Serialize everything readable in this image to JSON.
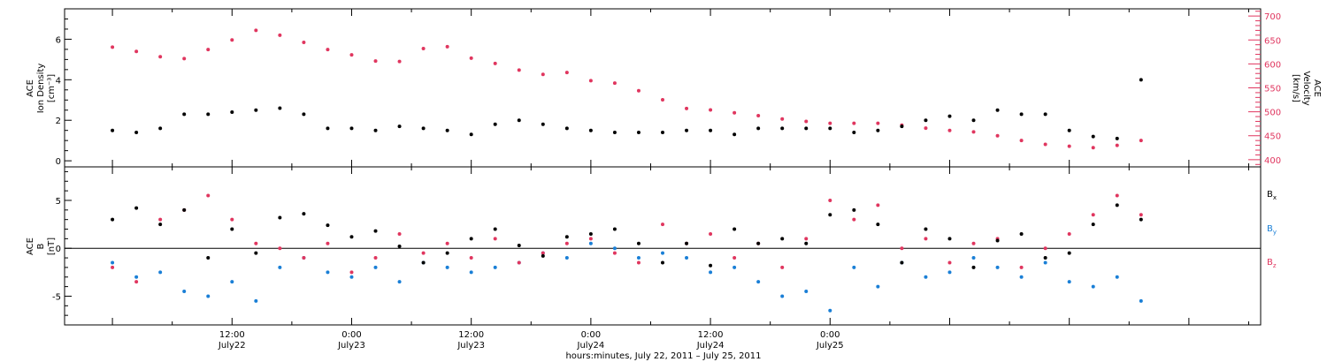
{
  "colors": {
    "density": "#000000",
    "velocity": "#e0365f",
    "bx": "#000000",
    "by": "#1a7fd6",
    "bz": "#e0365f",
    "axis": "#000000"
  },
  "chart_data": [
    {
      "type": "scatter",
      "panel": "plasma",
      "xlim": [
        -0.2,
        4.8
      ],
      "ylim_left": [
        -0.3,
        7.5
      ],
      "yticks_left": [
        0,
        2,
        4,
        6
      ],
      "ylim_right": [
        385,
        715
      ],
      "yticks_right": [
        400,
        450,
        500,
        550,
        600,
        650,
        700
      ],
      "ylabel_left": [
        "ACE",
        "Ion Density",
        "[cm⁻³]"
      ],
      "ylabel_right": [
        "ACE",
        "Velocity",
        "[km/s]"
      ],
      "series": [
        {
          "key": "density",
          "axis": "left",
          "x": [
            0.0,
            0.1,
            0.2,
            0.3,
            0.4,
            0.5,
            0.6,
            0.7,
            0.8,
            0.9,
            1.0,
            1.1,
            1.2,
            1.3,
            1.4,
            1.5,
            1.6,
            1.7,
            1.8,
            1.9,
            2.0,
            2.1,
            2.2,
            2.3,
            2.4,
            2.5,
            2.6,
            2.7,
            2.8,
            2.9,
            3.0,
            3.1,
            3.2,
            3.3,
            3.4,
            3.5,
            3.6,
            3.7,
            3.8,
            3.9,
            4.0,
            4.1,
            4.2,
            4.3
          ],
          "y": [
            1.5,
            1.4,
            1.6,
            2.3,
            2.3,
            2.4,
            2.5,
            2.6,
            2.3,
            1.6,
            1.6,
            1.5,
            1.7,
            1.6,
            1.5,
            1.3,
            1.8,
            2.0,
            1.8,
            1.6,
            1.5,
            1.4,
            1.4,
            1.4,
            1.5,
            1.5,
            1.3,
            1.6,
            1.6,
            1.6,
            1.6,
            1.4,
            1.5,
            1.7,
            2.0,
            2.2,
            2.0,
            2.5,
            2.3,
            2.3,
            1.5,
            1.2,
            1.1,
            4.0
          ]
        },
        {
          "key": "velocity",
          "axis": "right",
          "x": [
            0.0,
            0.1,
            0.2,
            0.3,
            0.4,
            0.5,
            0.6,
            0.7,
            0.8,
            0.9,
            1.0,
            1.1,
            1.2,
            1.3,
            1.4,
            1.5,
            1.6,
            1.7,
            1.8,
            1.9,
            2.0,
            2.1,
            2.2,
            2.3,
            2.4,
            2.5,
            2.6,
            2.7,
            2.8,
            2.9,
            3.0,
            3.1,
            3.2,
            3.3,
            3.4,
            3.5,
            3.6,
            3.7,
            3.8,
            3.9,
            4.0,
            4.1,
            4.2,
            4.3
          ],
          "y": [
            635,
            626,
            615,
            611,
            630,
            650,
            670,
            660,
            645,
            630,
            619,
            606,
            605,
            632,
            636,
            612,
            601,
            587,
            578,
            582,
            565,
            560,
            544,
            525,
            507,
            504,
            498,
            492,
            485,
            480,
            476,
            476,
            476,
            472,
            466,
            461,
            458,
            450,
            440,
            432,
            428,
            425,
            430,
            440
          ]
        }
      ]
    },
    {
      "type": "scatter",
      "panel": "magnetic-field",
      "xlim": [
        -0.2,
        4.8
      ],
      "ylim": [
        -8,
        8.5
      ],
      "yticks": [
        -5,
        0,
        5
      ],
      "ylabel": [
        "ACE",
        "B",
        "[nT]"
      ],
      "legend_placement": "right",
      "xtick_major": [
        {
          "x": 0.5,
          "time": "12:00",
          "date": "July22"
        },
        {
          "x": 1.0,
          "time": "0:00",
          "date": "July23"
        },
        {
          "x": 1.5,
          "time": "12:00",
          "date": "July23"
        },
        {
          "x": 2.0,
          "time": "0:00",
          "date": "July24"
        },
        {
          "x": 2.5,
          "time": "12:00",
          "date": "July24"
        },
        {
          "x": 3.0,
          "time": "0:00",
          "date": "July25"
        }
      ],
      "xlabel": "hours:minutes, July 22, 2011 – July 25, 2011",
      "series": [
        {
          "key": "bx",
          "label_main": "B",
          "label_sub": "x",
          "x": [
            0.0,
            0.1,
            0.2,
            0.3,
            0.4,
            0.5,
            0.6,
            0.7,
            0.8,
            0.9,
            1.0,
            1.1,
            1.2,
            1.3,
            1.4,
            1.5,
            1.6,
            1.7,
            1.8,
            1.9,
            2.0,
            2.1,
            2.2,
            2.3,
            2.4,
            2.5,
            2.6,
            2.7,
            2.8,
            2.9,
            3.0,
            3.1,
            3.2,
            3.3,
            3.4,
            3.5,
            3.6,
            3.7,
            3.8,
            3.9,
            4.0,
            4.1,
            4.2,
            4.3
          ],
          "y": [
            3.0,
            4.2,
            2.5,
            4.0,
            -1.0,
            2.0,
            -0.5,
            3.2,
            3.6,
            2.4,
            1.2,
            1.8,
            0.2,
            -1.5,
            -0.5,
            1.0,
            2.0,
            0.3,
            -0.8,
            1.2,
            1.5,
            2.0,
            0.5,
            -1.5,
            0.5,
            -1.8,
            2.0,
            0.5,
            1.0,
            0.5,
            3.5,
            4.0,
            2.5,
            -1.5,
            2.0,
            1.0,
            -2.0,
            0.8,
            1.5,
            -1.0,
            -0.5,
            2.5,
            4.5,
            3.0
          ]
        },
        {
          "key": "by",
          "label_main": "B",
          "label_sub": "y",
          "x": [
            0.0,
            0.1,
            0.2,
            0.3,
            0.4,
            0.5,
            0.6,
            0.7,
            0.8,
            0.9,
            1.0,
            1.1,
            1.2,
            1.3,
            1.4,
            1.5,
            1.6,
            1.7,
            1.8,
            1.9,
            2.0,
            2.1,
            2.2,
            2.3,
            2.4,
            2.5,
            2.6,
            2.7,
            2.8,
            2.9,
            3.0,
            3.1,
            3.2,
            3.3,
            3.4,
            3.5,
            3.6,
            3.7,
            3.8,
            3.9,
            4.0,
            4.1,
            4.2,
            4.3
          ],
          "y": [
            -1.5,
            -3.0,
            -2.5,
            -4.5,
            -5.0,
            -3.5,
            -5.5,
            -2.0,
            -1.0,
            -2.5,
            -3.0,
            -2.0,
            -3.5,
            -1.5,
            -2.0,
            -2.5,
            -2.0,
            -1.5,
            -0.5,
            -1.0,
            0.5,
            0.0,
            -1.0,
            -0.5,
            -1.0,
            -2.5,
            -2.0,
            -3.5,
            -5.0,
            -4.5,
            -6.5,
            -2.0,
            -4.0,
            -1.5,
            -3.0,
            -2.5,
            -1.0,
            -2.0,
            -3.0,
            -1.5,
            -3.5,
            -4.0,
            -3.0,
            -5.5
          ]
        },
        {
          "key": "bz",
          "label_main": "B",
          "label_sub": "z",
          "x": [
            0.0,
            0.1,
            0.2,
            0.3,
            0.4,
            0.5,
            0.6,
            0.7,
            0.8,
            0.9,
            1.0,
            1.1,
            1.2,
            1.3,
            1.4,
            1.5,
            1.6,
            1.7,
            1.8,
            1.9,
            2.0,
            2.1,
            2.2,
            2.3,
            2.4,
            2.5,
            2.6,
            2.7,
            2.8,
            2.9,
            3.0,
            3.1,
            3.2,
            3.3,
            3.4,
            3.5,
            3.6,
            3.7,
            3.8,
            3.9,
            4.0,
            4.1,
            4.2,
            4.3
          ],
          "y": [
            -2.0,
            -3.5,
            3.0,
            4.0,
            5.5,
            3.0,
            0.5,
            0.0,
            -1.0,
            0.5,
            -2.5,
            -1.0,
            1.5,
            -0.5,
            0.5,
            -1.0,
            1.0,
            -1.5,
            -0.5,
            0.5,
            1.0,
            -0.5,
            -1.5,
            2.5,
            0.5,
            1.5,
            -1.0,
            0.5,
            -2.0,
            1.0,
            5.0,
            3.0,
            4.5,
            0.0,
            1.0,
            -1.5,
            0.5,
            1.0,
            -2.0,
            0.0,
            1.5,
            3.5,
            5.5,
            3.5
          ]
        }
      ]
    }
  ]
}
